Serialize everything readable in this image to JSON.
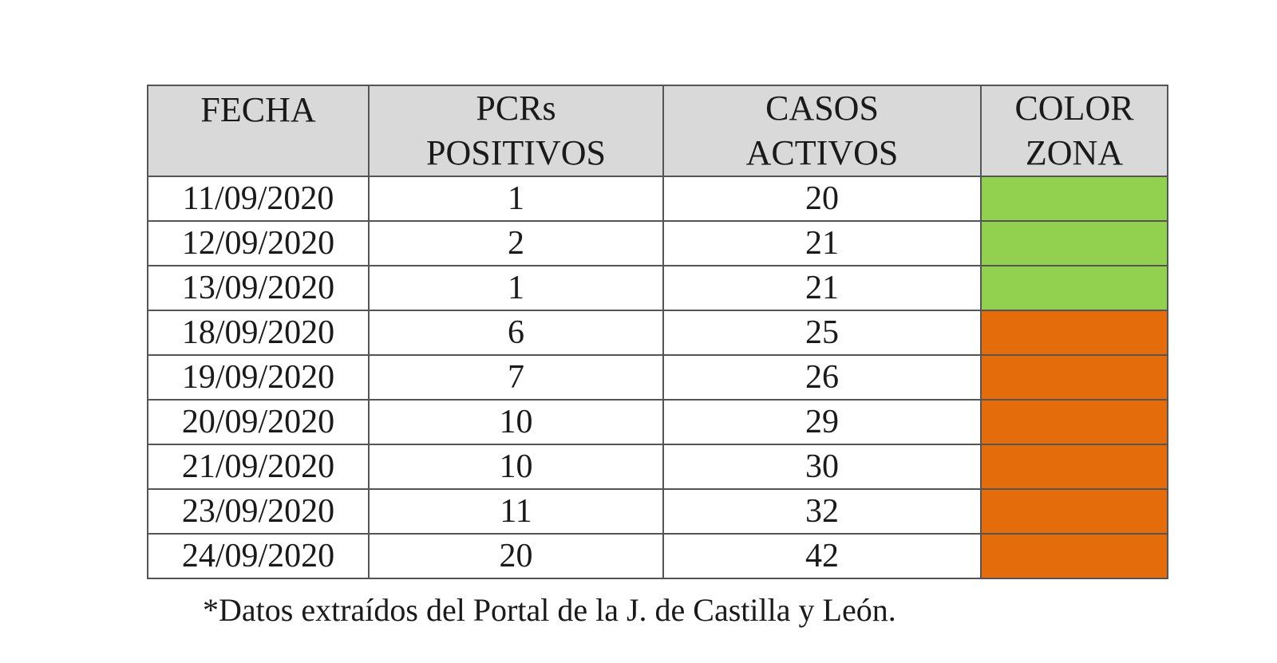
{
  "table": {
    "headers": [
      {
        "line1": "FECHA",
        "line2": ""
      },
      {
        "line1": "PCRs",
        "line2": "POSITIVOS"
      },
      {
        "line1": "CASOS",
        "line2": "ACTIVOS"
      },
      {
        "line1": "COLOR",
        "line2": "ZONA"
      }
    ],
    "rows": [
      {
        "fecha": "11/09/2020",
        "pcrs": "1",
        "casos": "20",
        "color": "#92d050"
      },
      {
        "fecha": "12/09/2020",
        "pcrs": "2",
        "casos": "21",
        "color": "#92d050"
      },
      {
        "fecha": "13/09/2020",
        "pcrs": "1",
        "casos": "21",
        "color": "#92d050"
      },
      {
        "fecha": "18/09/2020",
        "pcrs": "6",
        "casos": "25",
        "color": "#e46c0a"
      },
      {
        "fecha": "19/09/2020",
        "pcrs": "7",
        "casos": "26",
        "color": "#e46c0a"
      },
      {
        "fecha": "20/09/2020",
        "pcrs": "10",
        "casos": "29",
        "color": "#e46c0a"
      },
      {
        "fecha": "21/09/2020",
        "pcrs": "10",
        "casos": "30",
        "color": "#e46c0a"
      },
      {
        "fecha": "23/09/2020",
        "pcrs": "11",
        "casos": "32",
        "color": "#e46c0a"
      },
      {
        "fecha": "24/09/2020",
        "pcrs": "20",
        "casos": "42",
        "color": "#e46c0a"
      }
    ]
  },
  "footnote": "*Datos extraídos del Portal de la J. de Castilla y León."
}
